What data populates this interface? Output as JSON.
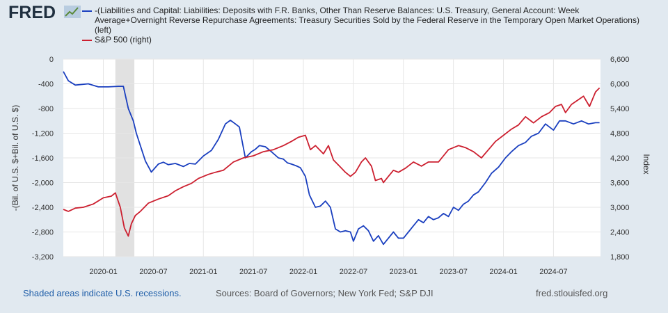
{
  "header": {
    "logo_text": "FRED",
    "logo_icon": "fred-chart-line-icon"
  },
  "legend": [
    {
      "label": "-(Liabilities and Capital: Liabilities: Deposits with F.R. Banks, Other Than Reserve Balances: U.S. Treasury, General Account: Week Average+Overnight Reverse Repurchase Agreements: Treasury Securities Sold by the Federal Reserve in the Temporary Open Market Operations) (left)",
      "color": "#1a3fbf"
    },
    {
      "label": "S&P 500 (right)",
      "color": "#cc1f2f"
    }
  ],
  "footer": {
    "recession_note": "Shaded areas indicate U.S. recessions.",
    "sources": "Sources: Board of Governors; New York Fed; S&P DJI",
    "site": "fred.stlouisfed.org"
  },
  "chart_data": {
    "type": "line",
    "ylabel_left": "-(Bil. of U.S. $+Bil. of U.S. $)",
    "ylabel_right": "Index",
    "ylim_left": [
      -3200,
      0
    ],
    "ylim_right": [
      1800,
      6600
    ],
    "yticks_left": [
      0,
      -400,
      -800,
      -1200,
      -1600,
      -2000,
      -2400,
      -2800,
      -3200
    ],
    "yticks_left_labels": [
      "0",
      "-400",
      "-800",
      "-1,200",
      "-1,600",
      "-2,000",
      "-2,400",
      "-2,800",
      "-3,200"
    ],
    "yticks_right": [
      6600,
      6000,
      5400,
      4800,
      4200,
      3600,
      3000,
      2400,
      1800
    ],
    "yticks_right_labels": [
      "6,600",
      "6,000",
      "5,400",
      "4,800",
      "4,200",
      "3,600",
      "3,000",
      "2,400",
      "1,800"
    ],
    "xlim": [
      2019.6,
      2024.97
    ],
    "xticks": [
      2020.0,
      2020.5,
      2021.0,
      2021.5,
      2022.0,
      2022.5,
      2023.0,
      2023.5,
      2024.0,
      2024.5
    ],
    "xtick_labels": [
      "2020-01",
      "2020-07",
      "2021-01",
      "2021-07",
      "2022-01",
      "2022-07",
      "2023-01",
      "2023-07",
      "2024-01",
      "2024-07"
    ],
    "grid": true,
    "recessions": [
      [
        2020.12,
        2020.31
      ]
    ],
    "series": [
      {
        "name": "-(Liabilities and Capital: Liabilities: Deposits with F.R. Banks, Other Than Reserve Balances: U.S. Treasury, General Account: Week Average+Overnight Reverse Repurchase Agreements: Treasury Securities Sold by the Federal Reserve in the Temporary Open Market Operations)",
        "axis": "left",
        "color": "#1a3fbf",
        "x": [
          2019.6,
          2019.65,
          2019.72,
          2019.85,
          2019.95,
          2020.05,
          2020.15,
          2020.2,
          2020.25,
          2020.3,
          2020.33,
          2020.37,
          2020.42,
          2020.48,
          2020.55,
          2020.6,
          2020.65,
          2020.72,
          2020.8,
          2020.86,
          2020.92,
          2021.0,
          2021.08,
          2021.15,
          2021.22,
          2021.27,
          2021.32,
          2021.36,
          2021.42,
          2021.48,
          2021.52,
          2021.56,
          2021.62,
          2021.68,
          2021.75,
          2021.8,
          2021.84,
          2021.88,
          2021.93,
          2021.97,
          2022.02,
          2022.06,
          2022.12,
          2022.17,
          2022.22,
          2022.27,
          2022.32,
          2022.37,
          2022.42,
          2022.47,
          2022.5,
          2022.55,
          2022.6,
          2022.65,
          2022.7,
          2022.75,
          2022.8,
          2022.85,
          2022.9,
          2022.95,
          2023.0,
          2023.05,
          2023.1,
          2023.15,
          2023.2,
          2023.25,
          2023.3,
          2023.35,
          2023.4,
          2023.45,
          2023.5,
          2023.55,
          2023.6,
          2023.65,
          2023.7,
          2023.75,
          2023.82,
          2023.88,
          2023.95,
          2024.02,
          2024.08,
          2024.15,
          2024.22,
          2024.28,
          2024.35,
          2024.42,
          2024.5,
          2024.56,
          2024.62,
          2024.7,
          2024.78,
          2024.85,
          2024.92,
          2024.96
        ],
        "values": [
          -200,
          -350,
          -420,
          -400,
          -450,
          -450,
          -440,
          -440,
          -800,
          -1000,
          -1200,
          -1400,
          -1650,
          -1830,
          -1700,
          -1670,
          -1710,
          -1690,
          -1740,
          -1690,
          -1700,
          -1570,
          -1480,
          -1300,
          -1050,
          -990,
          -1050,
          -1100,
          -1600,
          -1500,
          -1460,
          -1400,
          -1420,
          -1500,
          -1600,
          -1620,
          -1680,
          -1700,
          -1730,
          -1760,
          -1900,
          -2200,
          -2400,
          -2380,
          -2300,
          -2400,
          -2750,
          -2800,
          -2780,
          -2800,
          -2950,
          -2750,
          -2700,
          -2780,
          -2950,
          -2860,
          -3000,
          -2900,
          -2800,
          -2900,
          -2900,
          -2800,
          -2700,
          -2600,
          -2650,
          -2550,
          -2600,
          -2570,
          -2500,
          -2550,
          -2400,
          -2450,
          -2350,
          -2300,
          -2200,
          -2150,
          -2000,
          -1850,
          -1750,
          -1600,
          -1500,
          -1400,
          -1350,
          -1250,
          -1200,
          -1050,
          -1150,
          -1000,
          -1000,
          -1050,
          -1000,
          -1050,
          -1030,
          -1030
        ]
      },
      {
        "name": "S&P 500",
        "axis": "right",
        "color": "#cc1f2f",
        "x": [
          2019.6,
          2019.65,
          2019.72,
          2019.8,
          2019.9,
          2020.0,
          2020.08,
          2020.12,
          2020.17,
          2020.21,
          2020.25,
          2020.28,
          2020.32,
          2020.37,
          2020.45,
          2020.55,
          2020.65,
          2020.72,
          2020.8,
          2020.88,
          2020.95,
          2021.05,
          2021.12,
          2021.2,
          2021.3,
          2021.4,
          2021.5,
          2021.6,
          2021.7,
          2021.8,
          2021.88,
          2021.95,
          2022.02,
          2022.07,
          2022.12,
          2022.2,
          2022.25,
          2022.3,
          2022.36,
          2022.42,
          2022.47,
          2022.52,
          2022.58,
          2022.62,
          2022.68,
          2022.72,
          2022.78,
          2022.8,
          2022.85,
          2022.9,
          2022.95,
          2023.02,
          2023.1,
          2023.18,
          2023.25,
          2023.35,
          2023.45,
          2023.55,
          2023.62,
          2023.7,
          2023.78,
          2023.85,
          2023.92,
          2024.0,
          2024.08,
          2024.15,
          2024.22,
          2024.3,
          2024.38,
          2024.46,
          2024.52,
          2024.58,
          2024.62,
          2024.68,
          2024.74,
          2024.8,
          2024.86,
          2024.92,
          2024.96
        ],
        "values": [
          2950,
          2900,
          2980,
          3000,
          3080,
          3230,
          3270,
          3350,
          3000,
          2500,
          2300,
          2600,
          2800,
          2900,
          3100,
          3200,
          3280,
          3400,
          3500,
          3580,
          3700,
          3800,
          3850,
          3900,
          4100,
          4200,
          4250,
          4350,
          4400,
          4500,
          4600,
          4700,
          4750,
          4400,
          4500,
          4300,
          4500,
          4150,
          4000,
          3850,
          3750,
          3850,
          4100,
          4200,
          4000,
          3650,
          3700,
          3600,
          3750,
          3900,
          3850,
          3950,
          4100,
          4000,
          4100,
          4100,
          4400,
          4500,
          4450,
          4350,
          4200,
          4400,
          4600,
          4750,
          4900,
          5000,
          5200,
          5050,
          5200,
          5300,
          5450,
          5500,
          5300,
          5500,
          5600,
          5700,
          5450,
          5800,
          5900
        ]
      }
    ]
  }
}
